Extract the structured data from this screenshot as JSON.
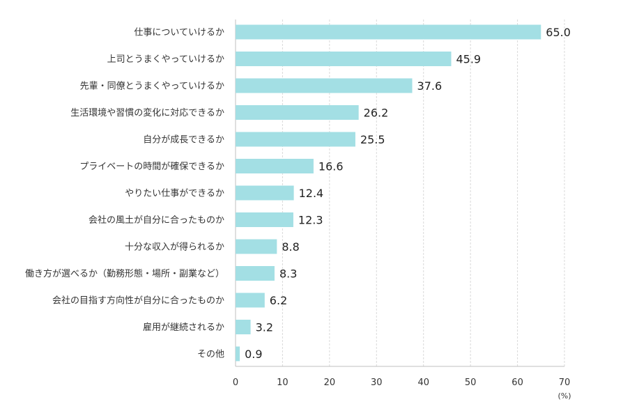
{
  "chart_data": {
    "type": "bar",
    "orientation": "horizontal",
    "categories": [
      "仕事についていけるか",
      "上司とうまくやっていけるか",
      "先輩・同僚とうまくやっていけるか",
      "生活環境や習慣の変化に対応できるか",
      "自分が成長できるか",
      "プライベートの時間が確保できるか",
      "やりたい仕事ができるか",
      "会社の風土が自分に合ったものか",
      "十分な収入が得られるか",
      "働き方が選べるか（勤務形態・場所・副業など）",
      "会社の目指す方向性が自分に合ったものか",
      "雇用が継続されるか",
      "その他"
    ],
    "values": [
      65.0,
      45.9,
      37.6,
      26.2,
      25.5,
      16.6,
      12.4,
      12.3,
      8.8,
      8.3,
      6.2,
      3.2,
      0.9
    ],
    "value_labels": [
      "65.0",
      "45.9",
      "37.6",
      "26.2",
      "25.5",
      "16.6",
      "12.4",
      "12.3",
      "8.8",
      "8.3",
      "6.2",
      "3.2",
      "0.9"
    ],
    "xlim": [
      0,
      70
    ],
    "xticks": [
      "0",
      "10",
      "20",
      "30",
      "40",
      "50",
      "60",
      "70"
    ],
    "xtick_values": [
      0,
      10,
      20,
      30,
      40,
      50,
      60,
      70
    ],
    "unit_label": "(%)",
    "grid": true,
    "colors": {
      "bar": "#a3dfe4",
      "grid": "#d9d9d9",
      "axis": "#bfbfbf"
    }
  }
}
